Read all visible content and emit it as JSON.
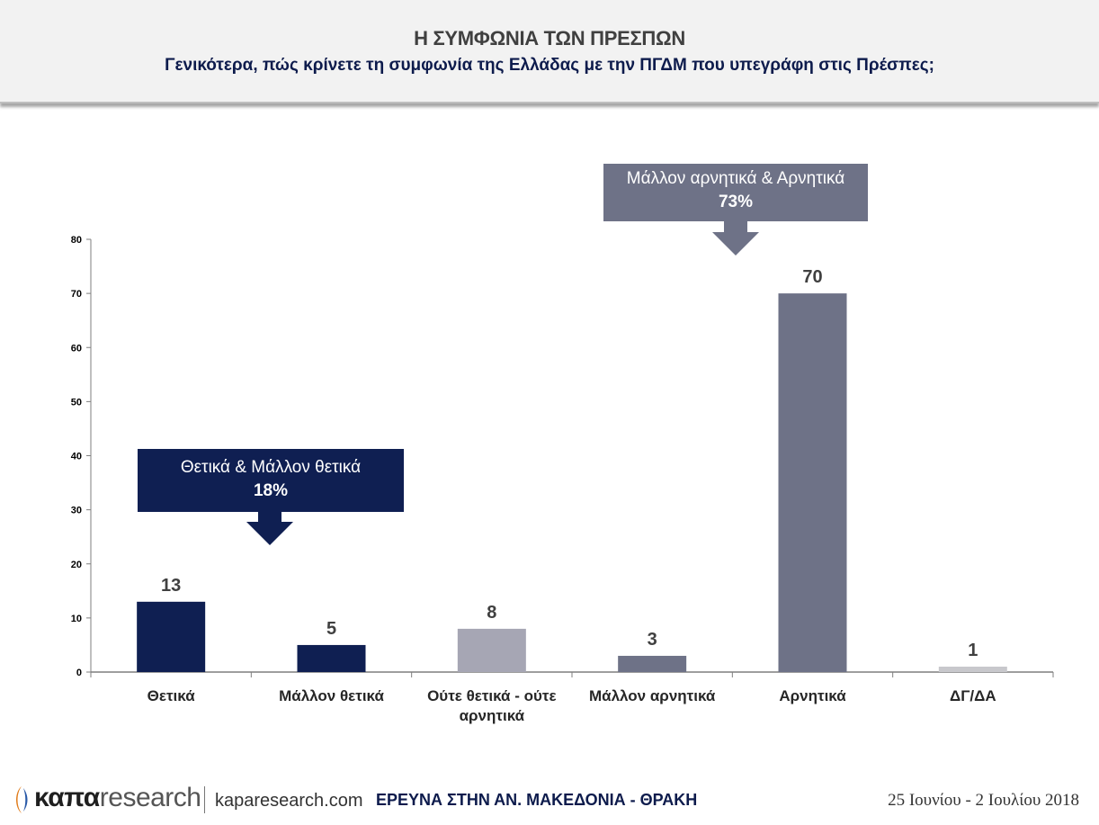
{
  "header": {
    "title": "Η ΣΥΜΦΩΝΙΑ ΤΩΝ ΠΡΕΣΠΩΝ",
    "subtitle": "Γενικότερα, πώς κρίνετε τη συμφωνία της Ελλάδας με την ΠΓΔΜ που υπεγράφη στις Πρέσπες;"
  },
  "chart_data": {
    "type": "bar",
    "categories": [
      "Θετικά",
      "Μάλλον θετικά",
      "Ούτε θετικά - ούτε αρνητικά",
      "Μάλλον αρνητικά",
      "Αρνητικά",
      "ΔΓ/ΔΑ"
    ],
    "category_lines": [
      [
        "Θετικά"
      ],
      [
        "Μάλλον θετικά"
      ],
      [
        "Ούτε θετικά - ούτε",
        "αρνητικά"
      ],
      [
        "Μάλλον αρνητικά"
      ],
      [
        "Αρνητικά"
      ],
      [
        "ΔΓ/ΔΑ"
      ]
    ],
    "values": [
      13,
      5,
      8,
      3,
      70,
      1
    ],
    "colors": [
      "#0f1f52",
      "#0f1f52",
      "#a6a6b4",
      "#6e7287",
      "#6e7287",
      "#c8c8cc"
    ],
    "ylim": [
      0,
      80
    ],
    "yticks": [
      0,
      10,
      20,
      30,
      40,
      50,
      60,
      70,
      80
    ],
    "grid": false,
    "annotations": [
      {
        "label": "Θετικά & Μάλλον θετικά",
        "value": "18%",
        "color": "#0f1f52"
      },
      {
        "label": "Μάλλον αρνητικά & Αρνητικά",
        "value": "73%",
        "color": "#6e7287"
      }
    ]
  },
  "footer": {
    "logo_kapa": "καπα",
    "logo_research": "research",
    "logo_url": "kaparesearch.com",
    "survey": "ΕΡΕΥΝΑ ΣΤΗΝ ΑΝ. ΜΑΚΕΔΟΝΙΑ - ΘΡΑΚΗ",
    "date": "25 Ιουνίου - 2 Ιουλίου 2018",
    "logo_color": "#e07b1a"
  }
}
